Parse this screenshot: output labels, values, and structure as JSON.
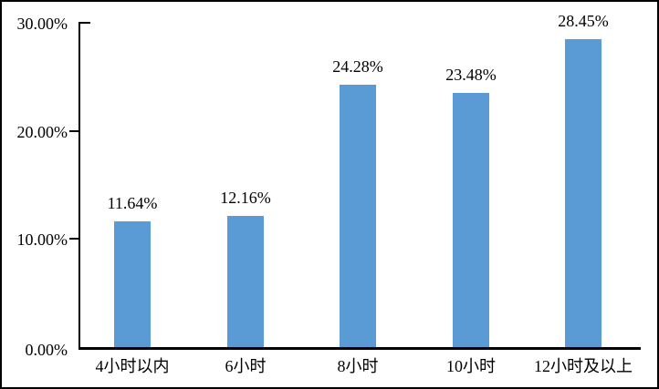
{
  "chart_data": {
    "type": "bar",
    "title": "",
    "categories": [
      "4小时以内",
      "6小时",
      "8小时",
      "10小时",
      "12小时及以上"
    ],
    "values": [
      11.64,
      12.16,
      24.28,
      23.48,
      28.45
    ],
    "data_labels": [
      "11.64%",
      "12.16%",
      "24.28%",
      "23.48%",
      "28.45%"
    ],
    "y_axis": {
      "min": 0,
      "max": 30,
      "ticks": [
        {
          "label": "0.00%",
          "value": 0
        },
        {
          "label": "10.00%",
          "value": 10
        },
        {
          "label": "20.00%",
          "value": 20
        },
        {
          "label": "30.00%",
          "value": 30
        }
      ]
    },
    "bar_color": "#5B9BD5",
    "axis_color": "#000000",
    "grid": false,
    "legend_position": "none"
  }
}
